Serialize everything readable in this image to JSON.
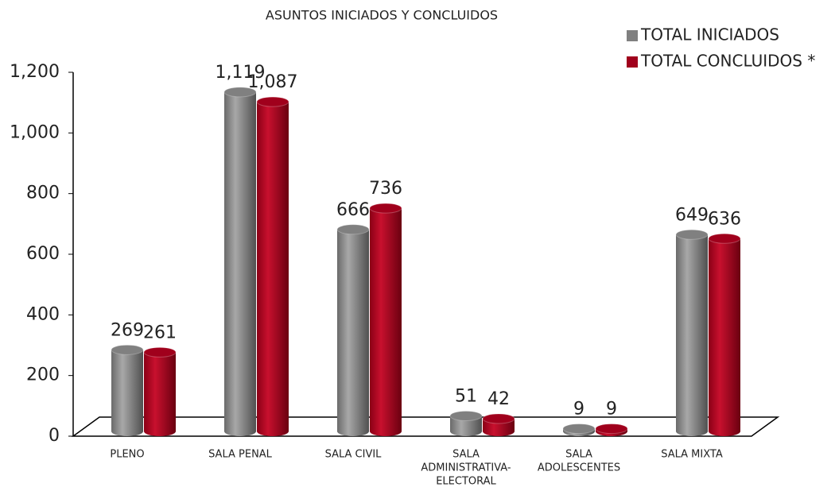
{
  "chart_data": {
    "type": "bar",
    "title": "ASUNTOS INICIADOS Y CONCLUIDOS",
    "categories": [
      [
        "PLENO"
      ],
      [
        "SALA PENAL"
      ],
      [
        "SALA CIVIL"
      ],
      [
        "SALA",
        "ADMINISTRATIVA-",
        "ELECTORAL"
      ],
      [
        "SALA",
        "ADOLESCENTES"
      ],
      [
        "SALA MIXTA"
      ]
    ],
    "series": [
      {
        "name": "TOTAL INICIADOS",
        "color": "#808080",
        "values": [
          269,
          1119,
          666,
          51,
          9,
          649
        ],
        "value_labels": [
          "269",
          "1,119",
          "666",
          "51",
          "9",
          "649"
        ]
      },
      {
        "name": "TOTAL CONCLUIDOS *",
        "color": "#a0001c",
        "values": [
          261,
          1087,
          736,
          42,
          9,
          636
        ],
        "value_labels": [
          "261",
          "1,087",
          "736",
          "42",
          "9",
          "636"
        ]
      }
    ],
    "ylim": [
      0,
      1200
    ],
    "yticks": [
      0,
      200,
      400,
      600,
      800,
      {
        "value": 1000,
        "label": "1,000"
      },
      {
        "value": 1200,
        "label": "1,200"
      }
    ],
    "legend": "top-right"
  }
}
